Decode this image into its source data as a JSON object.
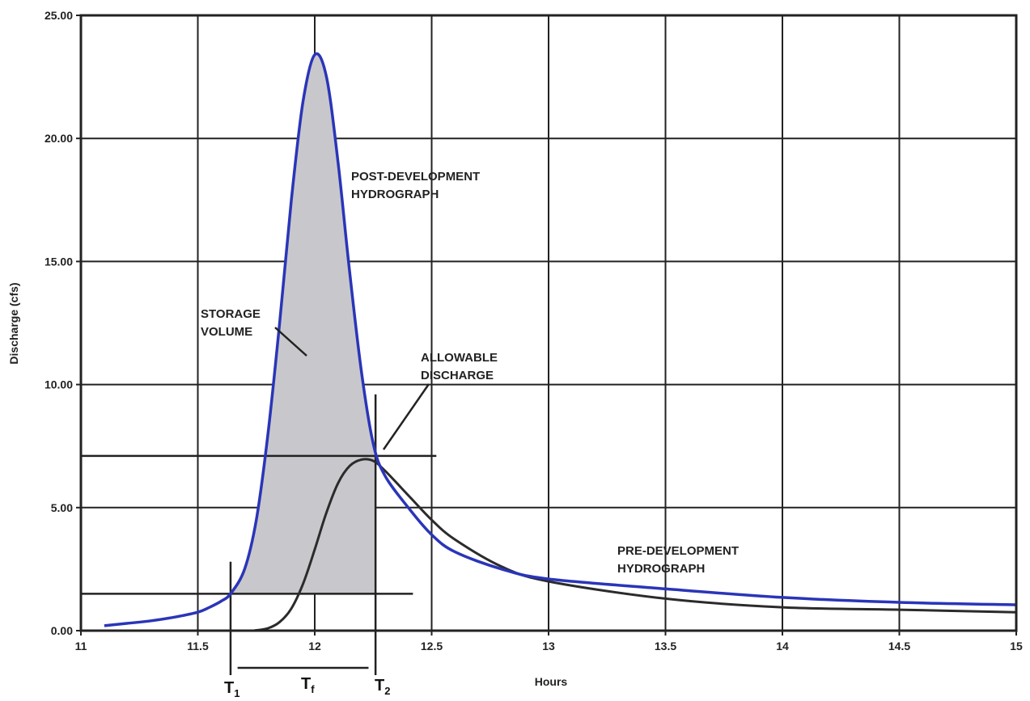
{
  "chart_data": {
    "type": "line",
    "xlabel": "Hours",
    "ylabel": "Discharge (cfs)",
    "xlim": [
      11,
      15
    ],
    "ylim": [
      0,
      25
    ],
    "x_ticks": [
      "11",
      "11.5",
      "12",
      "12.5",
      "13",
      "13.5",
      "14",
      "14.5",
      "15"
    ],
    "y_ticks": [
      "0.00",
      "5.00",
      "10.00",
      "15.00",
      "20.00",
      "25.00"
    ],
    "grid": true,
    "series": [
      {
        "name": "POST-DEVELOPMENT HYDROGRAPH",
        "color": "#2a35b8",
        "x": [
          11.1,
          11.2,
          11.3,
          11.4,
          11.5,
          11.55,
          11.6,
          11.64,
          11.7,
          11.75,
          11.8,
          11.85,
          11.9,
          11.95,
          12.0,
          12.05,
          12.1,
          12.15,
          12.2,
          12.25,
          12.3,
          12.4,
          12.5,
          12.6,
          12.8,
          13.0,
          13.5,
          14.0,
          14.5,
          15.0
        ],
        "y": [
          0.2,
          0.3,
          0.4,
          0.55,
          0.75,
          0.95,
          1.2,
          1.5,
          2.5,
          4.5,
          8.0,
          12.5,
          17.5,
          21.5,
          23.4,
          22.5,
          19.0,
          14.5,
          10.5,
          7.6,
          6.3,
          5.0,
          3.9,
          3.2,
          2.5,
          2.1,
          1.7,
          1.35,
          1.15,
          1.05
        ]
      },
      {
        "name": "PRE-DEVELOPMENT HYDROGRAPH",
        "color": "#2b2b2b",
        "x": [
          11.74,
          11.8,
          11.85,
          11.9,
          11.95,
          12.0,
          12.05,
          12.1,
          12.15,
          12.2,
          12.25,
          12.3,
          12.4,
          12.5,
          12.6,
          12.8,
          13.0,
          13.5,
          14.0,
          14.5,
          15.0
        ],
        "y": [
          0.0,
          0.1,
          0.35,
          0.9,
          1.9,
          3.3,
          4.8,
          6.0,
          6.7,
          6.95,
          6.9,
          6.5,
          5.5,
          4.5,
          3.7,
          2.6,
          2.0,
          1.3,
          0.95,
          0.85,
          0.75
        ]
      }
    ],
    "reference_lines": {
      "allowable_discharge": 7.1,
      "lower_level": 1.5,
      "t1": 11.64,
      "t2": 12.26
    },
    "annotations": {
      "post_line1": "POST-DEVELOPMENT",
      "post_line2": "HYDROGRAPH",
      "pre_line1": "PRE-DEVELOPMENT",
      "pre_line2": "HYDROGRAPH",
      "storage_line1": "STORAGE",
      "storage_line2": "VOLUME",
      "allow_line1": "ALLOWABLE",
      "allow_line2": "DISCHARGE",
      "t1_main": "T",
      "t1_sub": "1",
      "tf_main": "T",
      "tf_sub": "f",
      "t2_main": "T",
      "t2_sub": "2"
    },
    "storage_fill_color": "#c8c8cc"
  }
}
